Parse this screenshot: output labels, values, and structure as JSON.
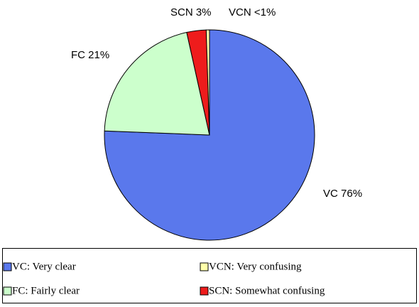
{
  "chart_data": {
    "type": "pie",
    "categories": [
      "VC: Very clear",
      "FC: Fairly clear",
      "SCN: Somewhat confusing",
      "VCN: Very confusing"
    ],
    "values": [
      76,
      21,
      3,
      0.5
    ],
    "value_labels": [
      "VC 76%",
      "FC 21%",
      "SCN 3%",
      "VCN <1%"
    ],
    "colors": [
      "#5a78ec",
      "#ccffcc",
      "#ee1c1c",
      "#ffffaa"
    ]
  }
}
